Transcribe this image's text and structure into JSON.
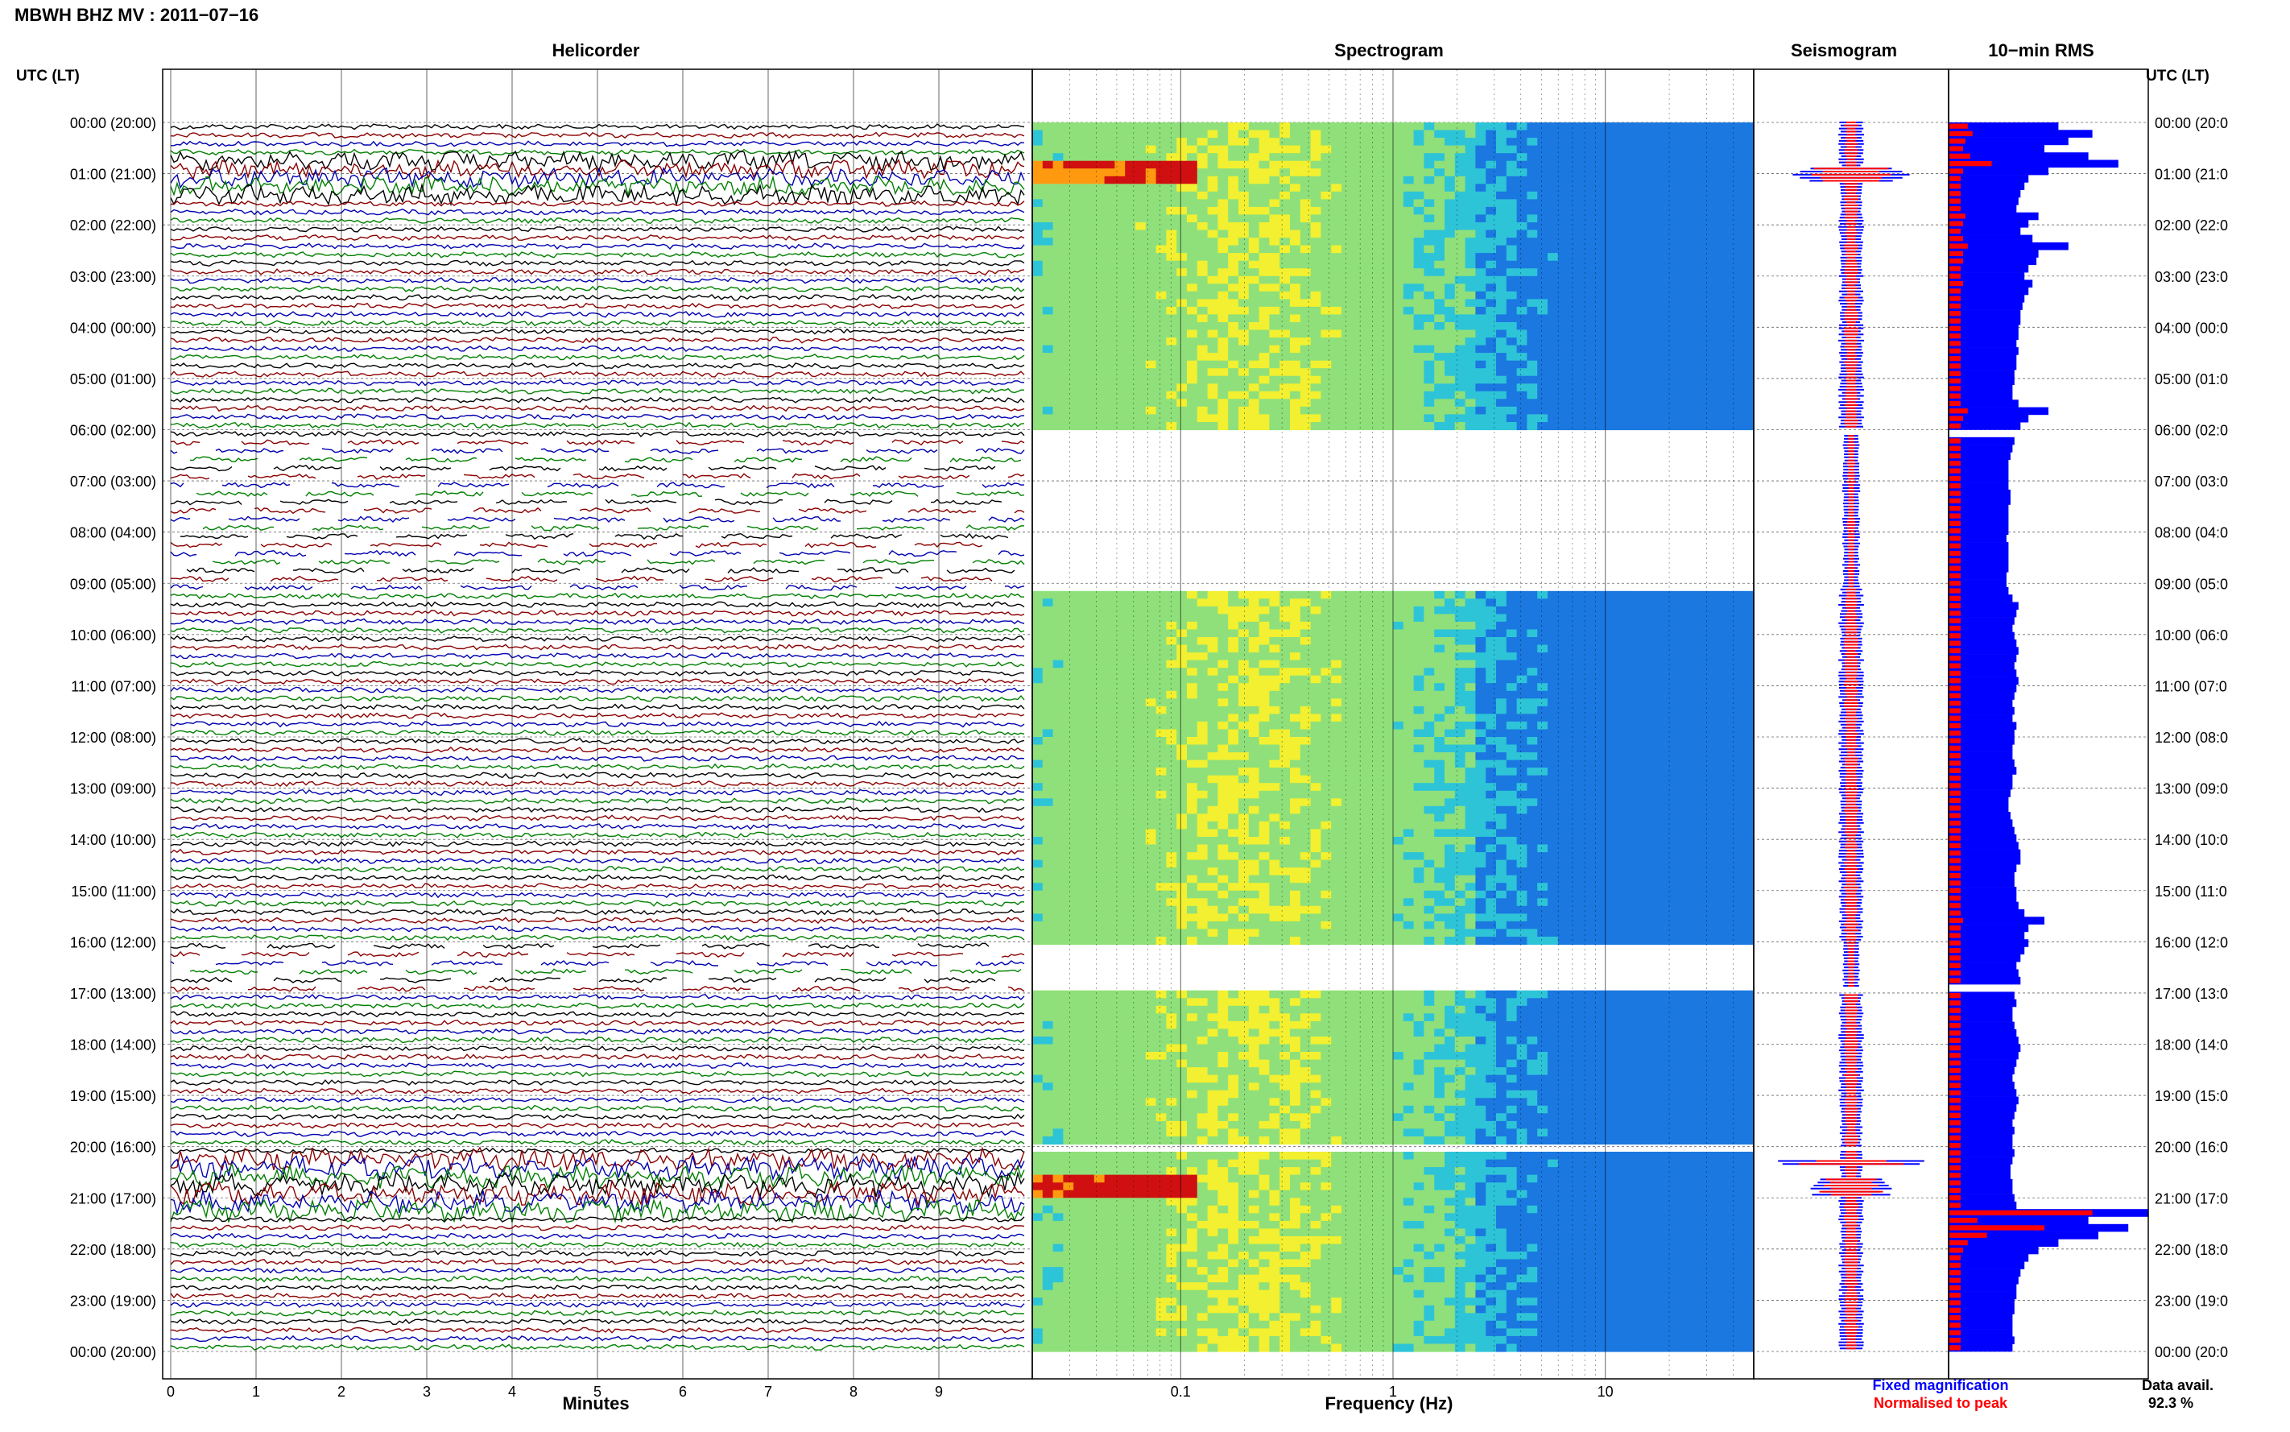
{
  "title": "MBWH BHZ MV : 2011−07−16",
  "headers": {
    "utc_left": "UTC (LT)",
    "utc_right": "UTC (LT)",
    "helicorder": "Helicorder",
    "spectrogram": "Spectrogram",
    "seismogram": "Seismogram",
    "rms": "10−min RMS"
  },
  "hour_labels": [
    "00:00 (20:00)",
    "01:00 (21:00)",
    "02:00 (22:00)",
    "03:00 (23:00)",
    "04:00 (00:00)",
    "05:00 (01:00)",
    "06:00 (02:00)",
    "07:00 (03:00)",
    "08:00 (04:00)",
    "09:00 (05:00)",
    "10:00 (06:00)",
    "11:00 (07:00)",
    "12:00 (08:00)",
    "13:00 (09:00)",
    "14:00 (10:00)",
    "15:00 (11:00)",
    "16:00 (12:00)",
    "17:00 (13:00)",
    "18:00 (14:00)",
    "19:00 (15:00)",
    "20:00 (16:00)",
    "21:00 (17:00)",
    "22:00 (18:00)",
    "23:00 (19:00)",
    "00:00 (20:00)"
  ],
  "hour_labels_right": [
    "00:00 (20:0",
    "01:00 (21:0",
    "02:00 (22:0",
    "03:00 (23:0",
    "04:00 (00:0",
    "05:00 (01:0",
    "06:00 (02:0",
    "07:00 (03:0",
    "08:00 (04:0",
    "09:00 (05:0",
    "10:00 (06:0",
    "11:00 (07:0",
    "12:00 (08:0",
    "13:00 (09:0",
    "14:00 (10:0",
    "15:00 (11:0",
    "16:00 (12:0",
    "17:00 (13:0",
    "18:00 (14:0",
    "19:00 (15:0",
    "20:00 (16:0",
    "21:00 (17:0",
    "22:00 (18:0",
    "23:00 (19:0",
    "00:00 (20:0"
  ],
  "helicorder": {
    "x_ticks": [
      "0",
      "1",
      "2",
      "3",
      "4",
      "5",
      "6",
      "7",
      "8",
      "9"
    ],
    "xlabel": "Minutes",
    "trace_colors": [
      "#000000",
      "#8b0000",
      "#0000b0",
      "#008000"
    ]
  },
  "spectrogram": {
    "x_ticks": [
      "0.1",
      "1",
      "10"
    ],
    "xlabel": "Frequency (Hz)"
  },
  "legend": {
    "fixed": "Fixed magnification",
    "normalised": "Normalised to peak",
    "fixed_color": "#0000ff",
    "normalised_color": "#ff0000"
  },
  "availability": {
    "label": "Data avail.",
    "value": "92.3 %"
  },
  "chart_data": {
    "type": "heatmap",
    "station": "MBWH BHZ MV",
    "date": "2011-07-16",
    "time_axis": {
      "unit": "hours UTC",
      "range": [
        0,
        24
      ]
    },
    "helicorder_xlim_minutes": [
      0,
      10
    ],
    "spectrogram_frequency_scale": "log",
    "spectrogram_frequency_range_hz": [
      0.02,
      50
    ],
    "data_gaps_hours": [
      [
        6.0,
        6.15
      ],
      [
        6.15,
        9.1
      ],
      [
        16.0,
        17.0
      ],
      [
        20.0,
        20.05
      ]
    ],
    "partial_data_hours": [
      [
        6.1,
        9.1
      ],
      [
        16.0,
        16.9
      ]
    ],
    "events_hours": [
      1.0,
      20.3,
      20.8
    ],
    "rms_fixed_magnification": [
      55,
      72,
      60,
      48,
      70,
      85,
      50,
      40,
      38,
      36,
      35,
      34,
      45,
      40,
      36,
      42,
      60,
      45,
      44,
      40,
      38,
      42,
      40,
      38,
      37,
      36,
      36,
      35,
      35,
      34,
      35,
      34,
      34,
      33,
      33,
      32,
      32,
      35,
      50,
      40,
      36,
      34,
      33,
      32,
      31,
      30,
      30,
      30,
      30,
      31,
      31,
      30,
      30,
      30,
      30,
      29,
      30,
      30,
      30,
      30,
      29,
      29,
      30,
      32,
      35,
      34,
      33,
      32,
      33,
      34,
      35,
      34,
      33,
      34,
      35,
      34,
      33,
      32,
      33,
      32,
      34,
      33,
      33,
      32,
      32,
      33,
      34,
      32,
      32,
      31,
      30,
      30,
      31,
      32,
      33,
      34,
      35,
      36,
      36,
      34,
      33,
      33,
      34,
      34,
      35,
      38,
      48,
      40,
      38,
      40,
      38,
      36,
      34,
      35,
      36,
      34,
      33,
      34,
      32,
      32,
      33,
      34,
      35,
      36,
      35,
      34,
      33,
      32,
      33,
      34,
      35,
      34,
      33,
      32,
      33,
      32,
      32,
      33,
      32,
      31,
      31,
      32,
      32,
      33,
      34,
      100,
      70,
      90,
      75,
      55,
      45,
      40,
      38,
      36,
      35,
      34,
      34,
      33,
      33,
      32,
      32,
      32,
      33,
      32
    ],
    "rms_normalised": [
      8,
      10,
      7,
      6,
      9,
      18,
      6,
      5,
      5,
      5,
      5,
      5,
      7,
      6,
      5,
      6,
      8,
      6,
      6,
      5,
      5,
      6,
      5,
      5,
      5,
      5,
      5,
      5,
      5,
      5,
      5,
      5,
      5,
      5,
      5,
      5,
      5,
      5,
      8,
      6,
      5,
      5,
      5,
      5,
      5,
      5,
      5,
      5,
      5,
      5,
      5,
      5,
      5,
      5,
      5,
      5,
      5,
      5,
      5,
      5,
      5,
      5,
      5,
      5,
      5,
      5,
      5,
      5,
      5,
      5,
      5,
      5,
      5,
      5,
      5,
      5,
      5,
      5,
      5,
      5,
      5,
      5,
      5,
      5,
      5,
      5,
      5,
      5,
      5,
      5,
      5,
      5,
      5,
      5,
      5,
      5,
      5,
      5,
      5,
      5,
      5,
      5,
      5,
      5,
      5,
      5,
      6,
      5,
      5,
      5,
      5,
      5,
      5,
      5,
      5,
      5,
      5,
      5,
      5,
      5,
      5,
      5,
      5,
      5,
      5,
      5,
      5,
      5,
      5,
      5,
      5,
      5,
      5,
      5,
      5,
      5,
      5,
      5,
      5,
      5,
      5,
      5,
      5,
      5,
      5,
      60,
      12,
      40,
      16,
      8,
      6,
      5,
      5,
      5,
      5,
      5,
      5,
      5,
      5,
      5,
      5,
      5,
      5,
      5
    ]
  }
}
